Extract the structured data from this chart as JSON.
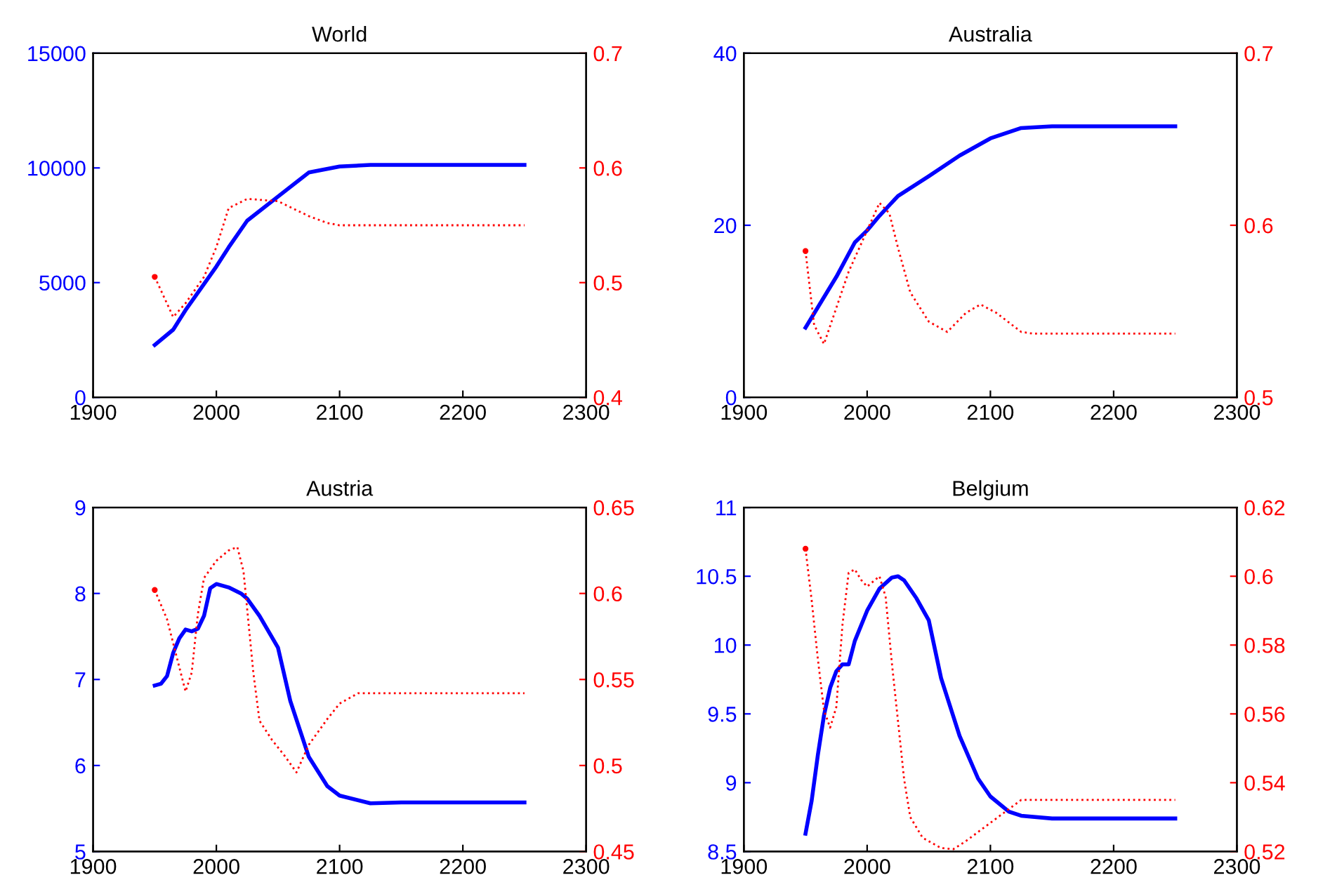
{
  "chart_data": [
    {
      "type": "line",
      "title": "World",
      "xlim": [
        1900,
        2300
      ],
      "xticks": [
        1900,
        2000,
        2100,
        2200,
        2300
      ],
      "ylim": [
        0,
        15000
      ],
      "yticks": [
        0,
        5000,
        10000,
        15000
      ],
      "y2lim": [
        0.4,
        0.7
      ],
      "y2ticks": [
        0.4,
        0.5,
        0.6,
        0.7
      ],
      "grid": false,
      "legend": false,
      "series": [
        {
          "color": "#0000ff",
          "line_style": "solid",
          "x": [
            1950,
            1965,
            1975,
            2000,
            2010,
            2025,
            2050,
            2075,
            2100,
            2125,
            2250
          ],
          "values": [
            2280,
            2950,
            3800,
            5700,
            6540,
            7700,
            8750,
            9800,
            10060,
            10130,
            10130
          ]
        },
        {
          "color": "#ff0000",
          "line_style": "dotted",
          "axis": "y2",
          "x": [
            1950,
            1965,
            1975,
            1990,
            2000,
            2010,
            2025,
            2050,
            2075,
            2090,
            2100,
            2250
          ],
          "values": [
            0.505,
            0.47,
            0.482,
            0.505,
            0.531,
            0.565,
            0.573,
            0.571,
            0.558,
            0.552,
            0.55,
            0.55
          ]
        }
      ]
    },
    {
      "type": "line",
      "title": "Australia",
      "xlim": [
        1900,
        2300
      ],
      "xticks": [
        1900,
        2000,
        2100,
        2200,
        2300
      ],
      "ylim": [
        0,
        40
      ],
      "yticks": [
        0,
        20,
        40
      ],
      "y2lim": [
        0.5,
        0.7
      ],
      "y2ticks": [
        0.5,
        0.6,
        0.7
      ],
      "grid": false,
      "legend": false,
      "series": [
        {
          "color": "#0000ff",
          "line_style": "solid",
          "x": [
            1950,
            1975,
            1990,
            2000,
            2010,
            2025,
            2050,
            2075,
            2100,
            2125,
            2150,
            2250
          ],
          "values": [
            8.1,
            14.0,
            18.0,
            19.4,
            21.1,
            23.4,
            25.7,
            28.1,
            30.1,
            31.3,
            31.5,
            31.5
          ]
        },
        {
          "color": "#ff0000",
          "line_style": "dotted",
          "axis": "y2",
          "x": [
            1950,
            1957,
            1965,
            1975,
            1985,
            2000,
            2010,
            2018,
            2025,
            2035,
            2050,
            2065,
            2080,
            2092,
            2105,
            2125,
            2135,
            2250
          ],
          "values": [
            0.585,
            0.542,
            0.531,
            0.552,
            0.573,
            0.597,
            0.613,
            0.607,
            0.587,
            0.561,
            0.544,
            0.538,
            0.549,
            0.554,
            0.549,
            0.538,
            0.537,
            0.537
          ]
        }
      ]
    },
    {
      "type": "line",
      "title": "Austria",
      "xlim": [
        1900,
        2300
      ],
      "xticks": [
        1900,
        2000,
        2100,
        2200,
        2300
      ],
      "ylim": [
        5,
        9
      ],
      "yticks": [
        5,
        6,
        7,
        8,
        9
      ],
      "y2lim": [
        0.45,
        0.65
      ],
      "y2ticks": [
        0.45,
        0.5,
        0.55,
        0.6,
        0.65
      ],
      "grid": false,
      "legend": false,
      "series": [
        {
          "color": "#0000ff",
          "line_style": "solid",
          "x": [
            1950,
            1955,
            1960,
            1965,
            1970,
            1975,
            1980,
            1985,
            1990,
            1995,
            2000,
            2010,
            2020,
            2025,
            2035,
            2050,
            2060,
            2075,
            2090,
            2100,
            2125,
            2150,
            2250
          ],
          "values": [
            6.93,
            6.95,
            7.04,
            7.31,
            7.48,
            7.58,
            7.56,
            7.59,
            7.74,
            8.06,
            8.11,
            8.07,
            8.0,
            7.94,
            7.74,
            7.37,
            6.75,
            6.1,
            5.76,
            5.65,
            5.56,
            5.57,
            5.57
          ]
        },
        {
          "color": "#ff0000",
          "line_style": "dotted",
          "axis": "y2",
          "x": [
            1950,
            1960,
            1970,
            1975,
            1980,
            1985,
            1990,
            2000,
            2010,
            2017,
            2022,
            2030,
            2035,
            2045,
            2055,
            2065,
            2075,
            2090,
            2100,
            2115,
            2250
          ],
          "values": [
            0.602,
            0.585,
            0.557,
            0.543,
            0.554,
            0.588,
            0.609,
            0.619,
            0.625,
            0.627,
            0.613,
            0.554,
            0.526,
            0.515,
            0.506,
            0.496,
            0.512,
            0.527,
            0.536,
            0.542,
            0.542
          ]
        }
      ]
    },
    {
      "type": "line",
      "title": "Belgium",
      "xlim": [
        1900,
        2300
      ],
      "xticks": [
        1900,
        2000,
        2100,
        2200,
        2300
      ],
      "ylim": [
        8.5,
        11
      ],
      "yticks": [
        8.5,
        9,
        9.5,
        10,
        10.5,
        11
      ],
      "y2lim": [
        0.52,
        0.62
      ],
      "y2ticks": [
        0.52,
        0.54,
        0.56,
        0.58,
        0.6,
        0.62
      ],
      "grid": false,
      "legend": false,
      "series": [
        {
          "color": "#0000ff",
          "line_style": "solid",
          "x": [
            1950,
            1955,
            1960,
            1965,
            1970,
            1975,
            1980,
            1985,
            1990,
            2000,
            2010,
            2020,
            2025,
            2030,
            2040,
            2050,
            2060,
            2075,
            2090,
            2100,
            2115,
            2125,
            2150,
            2250
          ],
          "values": [
            8.63,
            8.87,
            9.2,
            9.49,
            9.69,
            9.81,
            9.86,
            9.86,
            10.03,
            10.25,
            10.41,
            10.49,
            10.5,
            10.47,
            10.34,
            10.18,
            9.76,
            9.34,
            9.03,
            8.9,
            8.79,
            8.76,
            8.74,
            8.74
          ]
        },
        {
          "color": "#ff0000",
          "line_style": "dotted",
          "axis": "y2",
          "x": [
            1950,
            1955,
            1960,
            1965,
            1970,
            1975,
            1980,
            1985,
            1990,
            1995,
            2000,
            2010,
            2015,
            2020,
            2025,
            2030,
            2035,
            2045,
            2060,
            2070,
            2080,
            2095,
            2110,
            2125,
            2135,
            2250
          ],
          "values": [
            0.608,
            0.593,
            0.576,
            0.561,
            0.556,
            0.562,
            0.586,
            0.601,
            0.602,
            0.599,
            0.597,
            0.6,
            0.594,
            0.575,
            0.558,
            0.541,
            0.53,
            0.524,
            0.521,
            0.5207,
            0.523,
            0.527,
            0.531,
            0.535,
            0.535,
            0.535
          ]
        }
      ]
    }
  ]
}
